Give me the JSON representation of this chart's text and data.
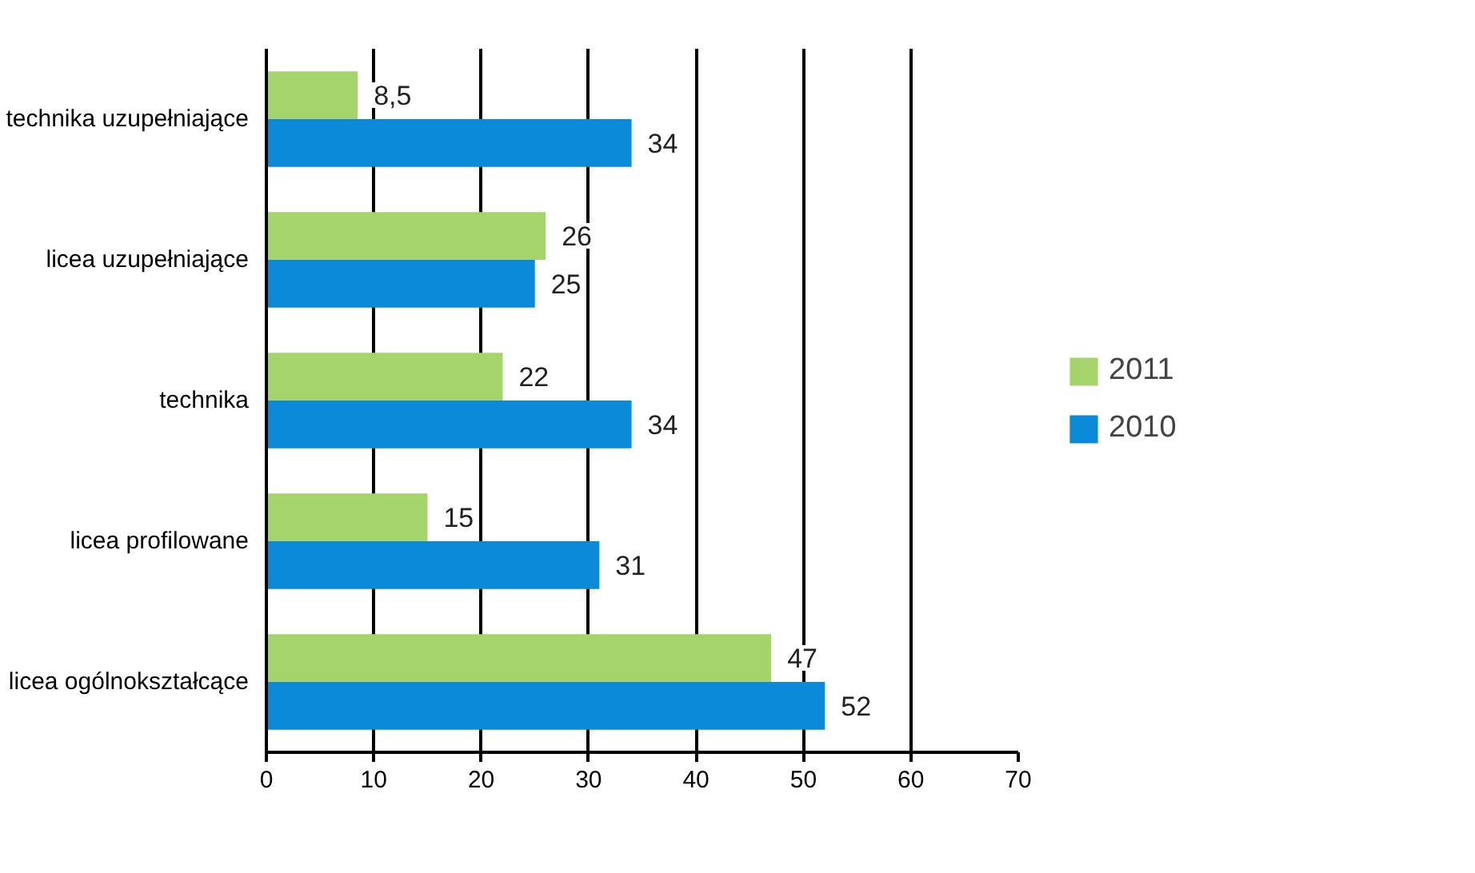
{
  "chart_data": {
    "type": "bar",
    "orientation": "horizontal",
    "categories": [
      "technika uzupełniające",
      "licea uzupełniające",
      "technika",
      "licea profilowane",
      "licea ogólnokształcące"
    ],
    "series": [
      {
        "name": "2011",
        "color": "#a6d46c",
        "values": [
          8.5,
          26,
          22,
          15,
          47
        ],
        "value_labels": [
          "8,5",
          "26",
          "22",
          "15",
          "47"
        ]
      },
      {
        "name": "2010",
        "color": "#0a8ad8",
        "values": [
          34,
          25,
          34,
          31,
          52
        ],
        "value_labels": [
          "34",
          "25",
          "34",
          "31",
          "52"
        ]
      }
    ],
    "xlim": [
      0,
      70
    ],
    "xticks": [
      0,
      10,
      20,
      30,
      40,
      50,
      60,
      70
    ],
    "grid": "x",
    "legend": "right"
  }
}
